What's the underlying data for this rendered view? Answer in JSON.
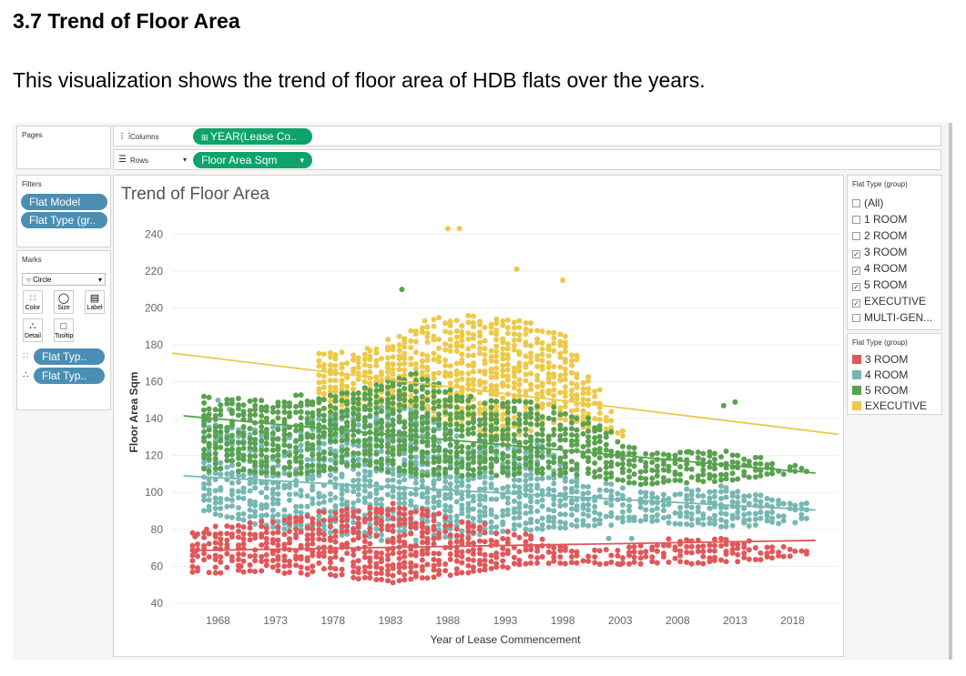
{
  "page": {
    "heading": "3.7 Trend of Floor Area",
    "description": "This visualization shows the trend of floor area of HDB flats over the years."
  },
  "tableau": {
    "pages_label": "Pages",
    "columns_label": "Columns",
    "rows_label": "Rows",
    "columns_pill": "YEAR(Lease Co..",
    "rows_pill": "Floor Area Sqm",
    "filters_label": "Filters",
    "filters": [
      "Flat Model",
      "Flat Type (gr.."
    ],
    "marks_label": "Marks",
    "mark_type": "Circle",
    "mark_buttons": [
      "Color",
      "Size",
      "Label",
      "Detail",
      "Tooltip"
    ],
    "mark_pills": [
      "Flat Typ..",
      "Flat Typ.."
    ],
    "filter_card": {
      "title": "Flat Type (group)",
      "items": [
        {
          "label": "(All)",
          "checked": false
        },
        {
          "label": "1 ROOM",
          "checked": false
        },
        {
          "label": "2 ROOM",
          "checked": false
        },
        {
          "label": "3 ROOM",
          "checked": true
        },
        {
          "label": "4 ROOM",
          "checked": true
        },
        {
          "label": "5 ROOM",
          "checked": true
        },
        {
          "label": "EXECUTIVE",
          "checked": true
        },
        {
          "label": "MULTI-GEN...",
          "checked": false
        }
      ]
    },
    "color_legend": {
      "title": "Flat Type (group)",
      "items": [
        {
          "label": "3 ROOM",
          "color": "#e15759"
        },
        {
          "label": "4 ROOM",
          "color": "#76b7b2"
        },
        {
          "label": "5 ROOM",
          "color": "#59a14f"
        },
        {
          "label": "EXECUTIVE",
          "color": "#edc948"
        }
      ]
    }
  },
  "chart_data": {
    "type": "scatter",
    "title": "Trend of Floor Area",
    "xlabel": "Year of Lease Commencement",
    "ylabel": "Floor Area Sqm",
    "xlim": [
      1964,
      2022
    ],
    "ylim": [
      37,
      250
    ],
    "xticks": [
      1968,
      1973,
      1978,
      1983,
      1988,
      1993,
      1998,
      2003,
      2008,
      2013,
      2018
    ],
    "yticks": [
      40,
      60,
      80,
      100,
      120,
      140,
      160,
      180,
      200,
      220,
      240
    ],
    "grid": "horizontal",
    "series": [
      {
        "name": "3 ROOM",
        "color": "#e15759",
        "x_range": [
          1966,
          2019
        ],
        "band": [
          [
            1967,
            57,
            80
          ],
          [
            1975,
            57,
            88
          ],
          [
            1983,
            52,
            95
          ],
          [
            1990,
            57,
            84
          ],
          [
            1995,
            62,
            77
          ],
          [
            2000,
            62,
            68
          ],
          [
            2010,
            62,
            77
          ],
          [
            2019,
            66,
            70
          ]
        ],
        "trend": [
          [
            1966,
            68.5
          ],
          [
            2020,
            74
          ]
        ],
        "extra_points": [
          [
            1966,
            68
          ],
          [
            1966,
            76
          ],
          [
            1967,
            80
          ],
          [
            1970,
            60
          ],
          [
            2003,
            61
          ]
        ]
      },
      {
        "name": "4 ROOM",
        "color": "#76b7b2",
        "x_range": [
          1967,
          2019
        ],
        "band": [
          [
            1967,
            90,
            140
          ],
          [
            1972,
            82,
            135
          ],
          [
            1980,
            77,
            145
          ],
          [
            1985,
            72,
            150
          ],
          [
            1990,
            77,
            125
          ],
          [
            1995,
            80,
            130
          ],
          [
            2000,
            82,
            108
          ],
          [
            2005,
            85,
            100
          ],
          [
            2012,
            82,
            103
          ],
          [
            2019,
            85,
            95
          ]
        ],
        "trend": [
          [
            1965,
            109
          ],
          [
            2020,
            90.5
          ]
        ],
        "extra_points": [
          [
            1967,
            140
          ],
          [
            1968,
            150
          ],
          [
            1969,
            145
          ],
          [
            2004,
            75
          ],
          [
            2002,
            75
          ]
        ]
      },
      {
        "name": "5 ROOM",
        "color": "#59a14f",
        "x_range": [
          1967,
          2019
        ],
        "band": [
          [
            1969,
            112,
            152
          ],
          [
            1975,
            110,
            152
          ],
          [
            1980,
            115,
            155
          ],
          [
            1985,
            110,
            165
          ],
          [
            1990,
            110,
            150
          ],
          [
            1995,
            110,
            150
          ],
          [
            2000,
            110,
            140
          ],
          [
            2005,
            105,
            122
          ],
          [
            2012,
            107,
            122
          ],
          [
            2019,
            112,
            114
          ]
        ],
        "trend": [
          [
            1965,
            141.5
          ],
          [
            2020,
            110.5
          ]
        ],
        "extra_points": [
          [
            1984,
            210
          ],
          [
            2012,
            147
          ],
          [
            2013,
            149
          ],
          [
            2009,
            122
          ],
          [
            1990,
            152
          ]
        ]
      },
      {
        "name": "EXECUTIVE",
        "color": "#edc948",
        "x_range": [
          1977,
          2003
        ],
        "band": [
          [
            1977,
            145,
            175
          ],
          [
            1982,
            148,
            180
          ],
          [
            1987,
            140,
            195
          ],
          [
            1993,
            130,
            195
          ],
          [
            1998,
            140,
            185
          ],
          [
            2003,
            130,
            135
          ]
        ],
        "trend": [
          [
            1964,
            175.5
          ],
          [
            2022,
            131.5
          ]
        ],
        "extra_points": [
          [
            1988,
            243
          ],
          [
            1989,
            243
          ],
          [
            1994,
            221
          ],
          [
            1998,
            215
          ],
          [
            1986,
            193
          ],
          [
            1981,
            178
          ]
        ]
      }
    ]
  }
}
